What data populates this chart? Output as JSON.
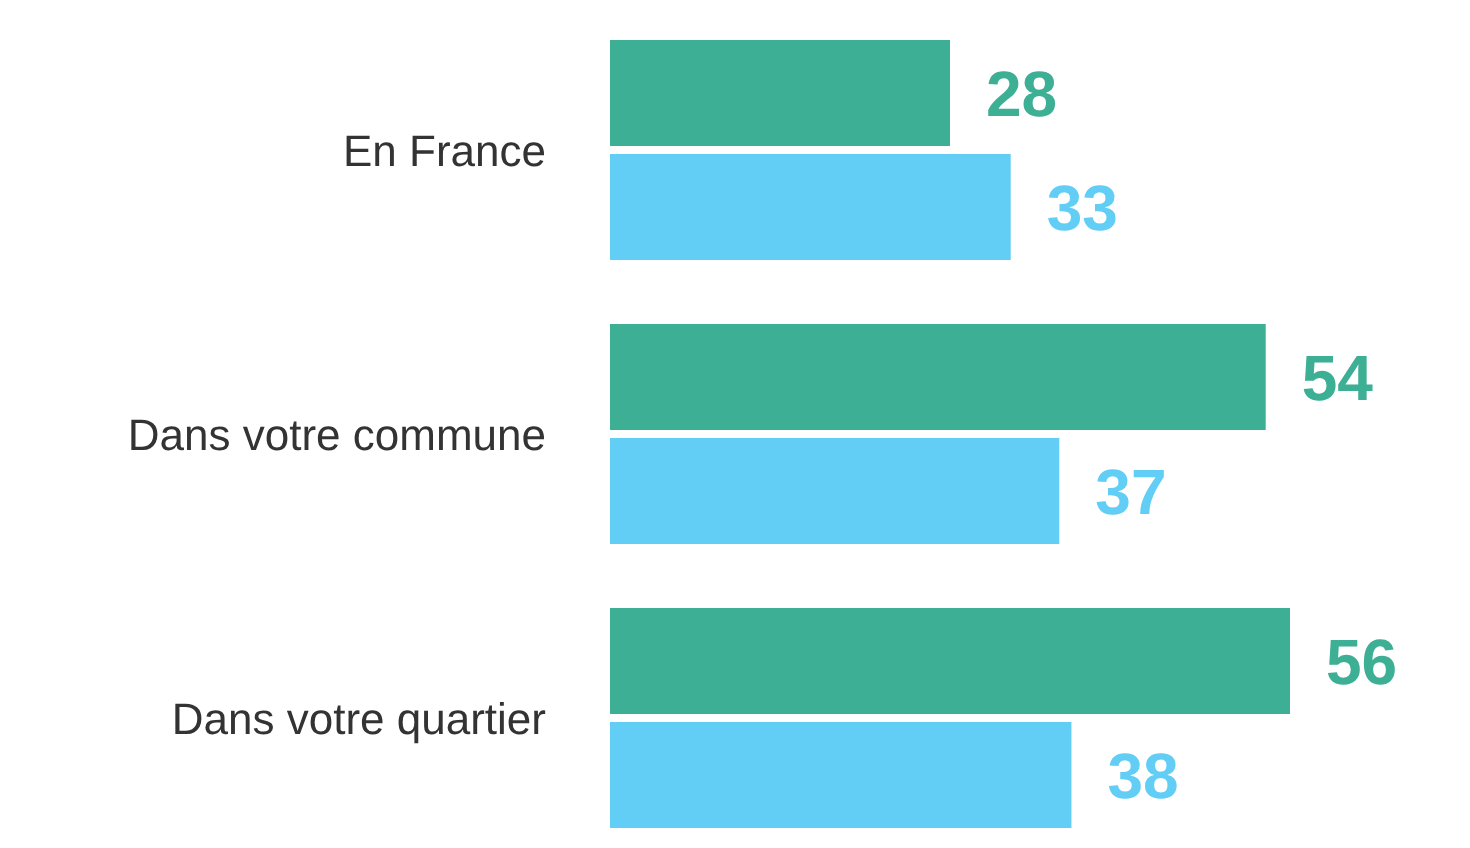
{
  "chart_data": {
    "type": "bar",
    "orientation": "horizontal",
    "categories": [
      "En France",
      "Dans votre commune",
      "Dans votre quartier"
    ],
    "series": [
      {
        "color": "#3daf94",
        "values": [
          28,
          54,
          56
        ]
      },
      {
        "color": "#62cdf5",
        "values": [
          33,
          37,
          38
        ]
      }
    ],
    "data_labels": true,
    "grid": false,
    "legend": false
  }
}
